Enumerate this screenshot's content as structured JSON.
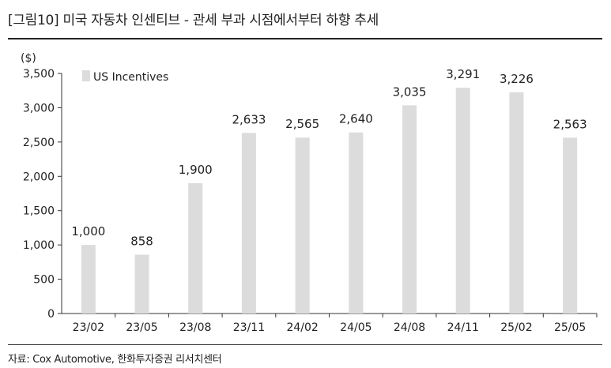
{
  "title": "[그림10]  미국 자동차 인센티브 - 관세 부과 시점에서부터 하향 추세",
  "source": "자료: Cox Automotive, 한화투자증권 리서치센터",
  "chart_data": {
    "type": "bar",
    "unit": "($)",
    "categories": [
      "23/02",
      "23/05",
      "23/08",
      "23/11",
      "24/02",
      "24/05",
      "24/08",
      "24/11",
      "25/02",
      "25/05"
    ],
    "series": [
      {
        "name": "US Incentives",
        "values": [
          1000,
          858,
          1900,
          2633,
          2565,
          2640,
          3035,
          3291,
          3226,
          2563
        ],
        "color": "#dcdcdc"
      }
    ],
    "data_labels": [
      "1,000",
      "858",
      "1,900",
      "2,633",
      "2,565",
      "2,640",
      "3,035",
      "3,291",
      "3,226",
      "2,563"
    ],
    "yticks": [
      "0",
      "500",
      "1,000",
      "1,500",
      "2,000",
      "2,500",
      "3,000",
      "3,500"
    ],
    "ylim": [
      0,
      3500
    ],
    "grid": false,
    "legend_position": "top-left"
  }
}
